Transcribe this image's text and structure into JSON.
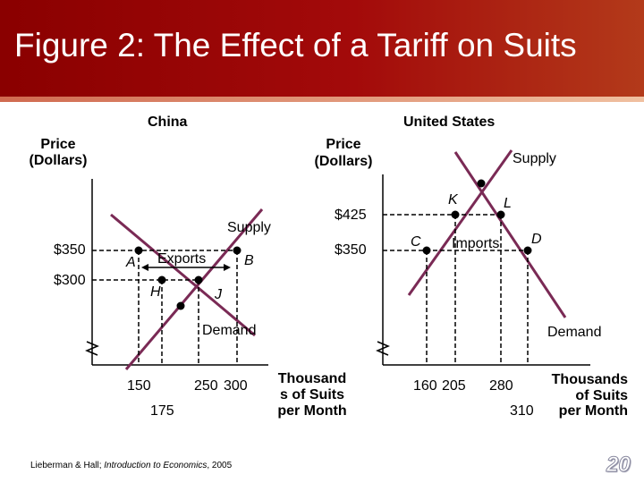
{
  "title": "Figure 2: The Effect of a Tariff on Suits",
  "colors": {
    "header": "#a30a0a",
    "curve": "#7a2a55"
  },
  "china": {
    "heading": "China",
    "y_axis_label": "Price\n(Dollars)",
    "price_labels": [
      "$350",
      "$300"
    ],
    "supply_label": "Supply",
    "demand_label": "Demand",
    "exports_label": "Exports",
    "points": [
      "A",
      "B",
      "H",
      "J"
    ],
    "quantities": [
      "150",
      "175",
      "250",
      "300"
    ],
    "x_axis_label": "Thousand\ns of Suits\nper Month"
  },
  "us": {
    "heading": "United States",
    "y_axis_label": "Price\n(Dollars)",
    "price_labels": [
      "$425",
      "$350"
    ],
    "supply_label": "Supply",
    "demand_label": "Demand",
    "imports_label": "Imports",
    "points": [
      "K",
      "L",
      "C",
      "D"
    ],
    "quantities": [
      "160",
      "205",
      "280",
      "310"
    ],
    "x_axis_label": "Thousands\nof Suits\nper Month"
  },
  "footer": {
    "authors": "Lieberman & Hall; ",
    "book": "Introduction to Economics",
    "year": ", 2005"
  },
  "page_number": "20"
}
